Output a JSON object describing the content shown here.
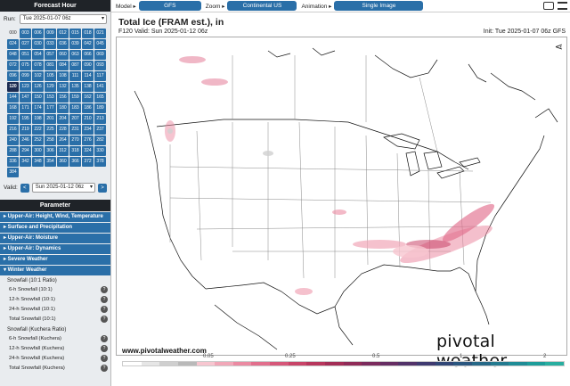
{
  "sidebar": {
    "forecast_hour_title": "Forecast Hour",
    "run_label": "Run:",
    "run_value": "Tue 2025-01-07 06z",
    "hours": [
      "000",
      "003",
      "006",
      "009",
      "012",
      "015",
      "018",
      "021",
      "024",
      "027",
      "030",
      "033",
      "036",
      "039",
      "042",
      "045",
      "048",
      "051",
      "054",
      "057",
      "060",
      "063",
      "066",
      "069",
      "072",
      "075",
      "078",
      "081",
      "084",
      "087",
      "090",
      "093",
      "096",
      "099",
      "102",
      "105",
      "108",
      "111",
      "114",
      "117",
      "120",
      "123",
      "126",
      "129",
      "132",
      "135",
      "138",
      "141",
      "144",
      "147",
      "150",
      "153",
      "156",
      "159",
      "162",
      "165",
      "168",
      "171",
      "174",
      "177",
      "180",
      "183",
      "186",
      "189",
      "192",
      "195",
      "198",
      "201",
      "204",
      "207",
      "210",
      "213",
      "216",
      "219",
      "222",
      "225",
      "228",
      "231",
      "234",
      "237",
      "240",
      "246",
      "252",
      "258",
      "264",
      "270",
      "276",
      "282",
      "288",
      "294",
      "300",
      "306",
      "312",
      "318",
      "324",
      "330",
      "336",
      "342",
      "348",
      "354",
      "360",
      "366",
      "372",
      "378",
      "384"
    ],
    "selected_hour": "120",
    "valid_label": "Valid:",
    "valid_prev": "<",
    "valid_value": "Sun 2025-01-12 06z",
    "valid_next": ">",
    "parameter_title": "Parameter",
    "categories": [
      "▸ Upper-Air: Height, Wind, Temperature",
      "▸ Surface and Precipitation",
      "▸ Upper-Air: Moisture",
      "▸ Upper-Air: Dynamics",
      "▸ Severe Weather",
      "▾ Winter Weather"
    ],
    "group1_title": "Snowfall (10:1 Ratio)",
    "group1_items": [
      "6-h Snowfall (10:1)",
      "12-h Snowfall (10:1)",
      "24-h Snowfall (10:1)",
      "Total Snowfall (10:1)"
    ],
    "group2_title": "Snowfall (Kuchera Ratio)",
    "group2_items": [
      "6-h Snowfall (Kuchera)",
      "12-h Snowfall (Kuchera)",
      "24-h Snowfall (Kuchera)",
      "Total Snowfall (Kuchera)"
    ],
    "help_icon": "?"
  },
  "topbar": {
    "model_label": "Model ▸",
    "model_value": "GFS",
    "zoom_label": "Zoom ▸",
    "zoom_value": "Continental US",
    "animation_label": "Animation ▸",
    "animation_value": "Single Image",
    "icons": [
      "keyboard-icon",
      "settings-sliders-icon"
    ]
  },
  "map": {
    "title": "Total Ice (FRAM est.), in",
    "subtitle": "F120 Valid: Sun 2025-01-12 06z",
    "init": "Init: Tue 2025-01-07 06z GFS",
    "url": "www.pivotalweather.com",
    "logo": "pivotal weather",
    "share_icon": "share-icon"
  },
  "colorbar": {
    "labels": [
      "0.05",
      "0.25",
      "0.5",
      "1",
      "2"
    ],
    "colors": [
      "#ffffff",
      "#e6e6e6",
      "#cfcfcf",
      "#b9b9b9",
      "#f7c6d0",
      "#f1a7b8",
      "#eb8aa2",
      "#e26f8d",
      "#d65779",
      "#c84468",
      "#b7365c",
      "#a32d56",
      "#8f2a57",
      "#7b2a5d",
      "#662d63",
      "#523269",
      "#3f3a70",
      "#314777",
      "#2a567f",
      "#266887",
      "#237a8f",
      "#1f8c96",
      "#1d9d9a",
      "#28aea0"
    ]
  }
}
